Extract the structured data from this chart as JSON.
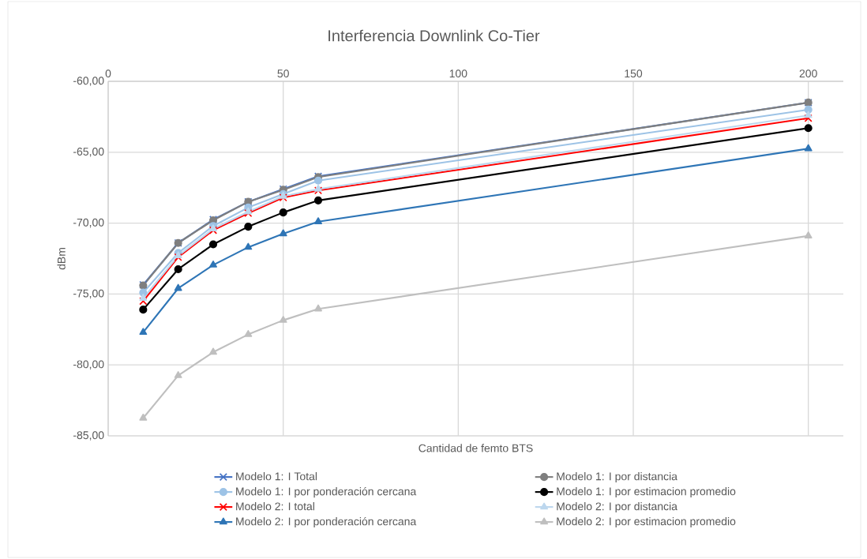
{
  "chart_data": {
    "type": "line",
    "title": "Interferencia Downlink Co-Tier",
    "xlabel": "Cantidad de femto BTS",
    "ylabel": "dBm",
    "x": [
      10,
      20,
      30,
      40,
      50,
      60,
      200
    ],
    "xlim": [
      0,
      210
    ],
    "xticks": [
      0,
      50,
      100,
      150,
      200
    ],
    "ylim": [
      -85,
      -60
    ],
    "yticks": [
      {
        "value": -85,
        "label": "-85,00"
      },
      {
        "value": -80,
        "label": "-80,00"
      },
      {
        "value": -75,
        "label": "-75,00"
      },
      {
        "value": -70,
        "label": "-70,00"
      },
      {
        "value": -65,
        "label": "-65,00"
      },
      {
        "value": -60,
        "label": "-60,00"
      }
    ],
    "grid": true,
    "legend": "bottom",
    "series": [
      {
        "name": "Modelo 1: I Total",
        "color": "#4472c4",
        "marker": "cross",
        "values": [
          -74.35,
          -71.4,
          -69.75,
          -68.5,
          -67.6,
          -66.7,
          -61.5
        ]
      },
      {
        "name": "Modelo 1: I por distancia",
        "color": "#7f7f7f",
        "marker": "circle",
        "values": [
          -74.4,
          -71.4,
          -69.8,
          -68.5,
          -67.65,
          -66.75,
          -61.5
        ]
      },
      {
        "name": "Modelo 1: I por ponderación cercana",
        "color": "#9dc3e6",
        "marker": "circle",
        "values": [
          -74.9,
          -72.1,
          -70.2,
          -68.9,
          -67.95,
          -67.0,
          -62.0
        ]
      },
      {
        "name": "Modelo 1: I por estimacion promedio",
        "color": "#000000",
        "marker": "circle",
        "values": [
          -76.1,
          -73.25,
          -71.5,
          -70.25,
          -69.25,
          -68.4,
          -63.3
        ]
      },
      {
        "name": "Modelo 2: I total",
        "color": "#ff0000",
        "marker": "cross",
        "values": [
          -75.5,
          -72.4,
          -70.5,
          -69.3,
          -68.2,
          -67.7,
          -62.6
        ]
      },
      {
        "name": "Modelo 2: I por distancia",
        "color": "#bdd7ee",
        "marker": "triangle",
        "values": [
          -75.3,
          -72.3,
          -70.4,
          -69.2,
          -68.1,
          -67.6,
          -62.4
        ]
      },
      {
        "name": "Modelo 2: I por ponderación cercana",
        "color": "#2e75b6",
        "marker": "triangle",
        "values": [
          -77.7,
          -74.6,
          -72.95,
          -71.7,
          -70.75,
          -69.9,
          -64.75
        ]
      },
      {
        "name": "Modelo 2: I por estimacion promedio",
        "color": "#bfbfbf",
        "marker": "triangle",
        "values": [
          -83.75,
          -80.75,
          -79.1,
          -77.85,
          -76.85,
          -76.05,
          -70.9
        ]
      }
    ]
  }
}
